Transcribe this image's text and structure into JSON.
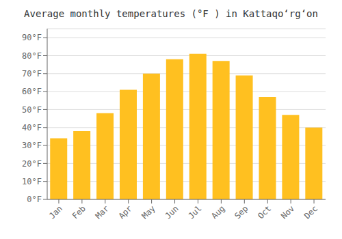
{
  "chart_data": {
    "type": "bar",
    "title": "Average monthly temperatures (°F ) in Kattaqoʻrgʻon",
    "categories": [
      "Jan",
      "Feb",
      "Mar",
      "Apr",
      "May",
      "Jun",
      "Jul",
      "Aug",
      "Sep",
      "Oct",
      "Nov",
      "Dec"
    ],
    "values": [
      34,
      38,
      48,
      61,
      70,
      78,
      81,
      77,
      69,
      57,
      47,
      40
    ],
    "color": "#FFC020",
    "ylim": [
      0,
      95
    ],
    "yticks": [
      {
        "value": 0,
        "label": "0°F"
      },
      {
        "value": 10,
        "label": "10°F"
      },
      {
        "value": 20,
        "label": "20°F"
      },
      {
        "value": 30,
        "label": "30°F"
      },
      {
        "value": 40,
        "label": "40°F"
      },
      {
        "value": 50,
        "label": "50°F"
      },
      {
        "value": 60,
        "label": "60°F"
      },
      {
        "value": 70,
        "label": "70°F"
      },
      {
        "value": 80,
        "label": "80°F"
      },
      {
        "value": 90,
        "label": "90°F"
      }
    ],
    "grid": true
  }
}
